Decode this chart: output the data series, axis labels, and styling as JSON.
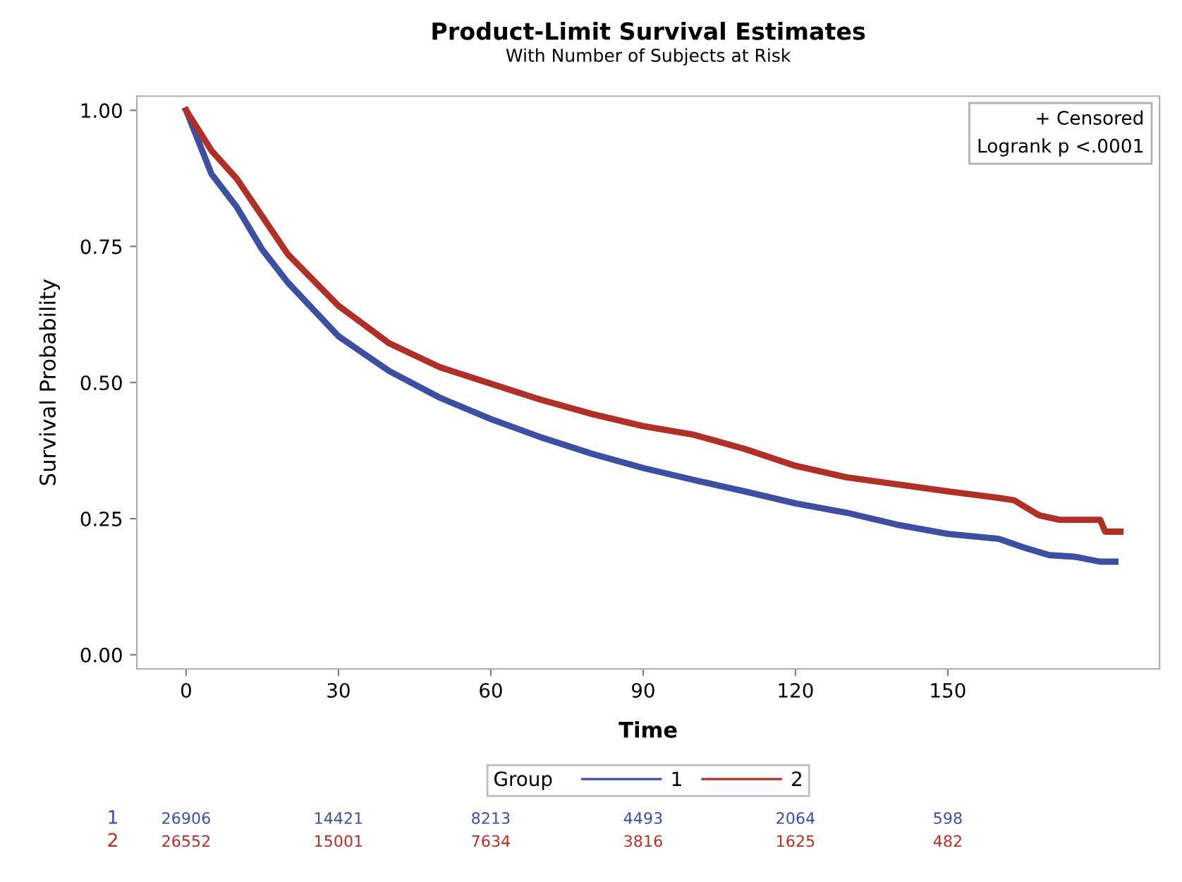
{
  "chart_data": {
    "type": "line",
    "title": "Product-Limit Survival Estimates",
    "subtitle": "With Number of Subjects at Risk",
    "xlabel": "Time",
    "ylabel": "Survival Probability",
    "legend_title": "Group",
    "legend": "bottom",
    "x": [
      0,
      5,
      10,
      15,
      20,
      30,
      40,
      50,
      60,
      70,
      80,
      90,
      100,
      110,
      120,
      130,
      140,
      150,
      160,
      165,
      170,
      175,
      180,
      183
    ],
    "series": [
      {
        "name": "1",
        "color": "#3c4fa0",
        "values": [
          1.0,
          0.883,
          0.822,
          0.744,
          0.684,
          0.585,
          0.521,
          0.472,
          0.433,
          0.399,
          0.369,
          0.343,
          0.321,
          0.3,
          0.278,
          0.261,
          0.239,
          0.222,
          0.213,
          0.197,
          0.183,
          0.18,
          0.171,
          0.171
        ]
      },
      {
        "name": "2",
        "color": "#b03028",
        "x": [
          0,
          5,
          10,
          15,
          20,
          30,
          40,
          50,
          60,
          70,
          80,
          90,
          100,
          110,
          120,
          130,
          140,
          150,
          160,
          163,
          168,
          172,
          180,
          181,
          184
        ],
        "values": [
          1.0,
          0.926,
          0.874,
          0.805,
          0.736,
          0.641,
          0.572,
          0.528,
          0.498,
          0.468,
          0.442,
          0.42,
          0.404,
          0.378,
          0.347,
          0.326,
          0.313,
          0.3,
          0.288,
          0.284,
          0.256,
          0.248,
          0.248,
          0.226,
          0.226
        ]
      }
    ],
    "xlim": [
      -9.7,
      191.7
    ],
    "ylim": [
      -0.026,
      1.026
    ],
    "xticks": [
      0,
      30,
      60,
      90,
      120,
      150
    ],
    "yticks": [
      {
        "value": 0,
        "label": "0.00"
      },
      {
        "value": 0.25,
        "label": "0.25"
      },
      {
        "value": 0.5,
        "label": "0.50"
      },
      {
        "value": 0.75,
        "label": "0.75"
      },
      {
        "value": 1,
        "label": "1.00"
      }
    ],
    "marker": "none",
    "line_style": "solid",
    "annotations": [
      "+ Censored",
      "Logrank p <.0001",
      "1",
      "26906",
      "14421",
      "8213",
      "4493",
      "2064",
      "598",
      "2",
      "26552",
      "15001",
      "7634",
      "3816",
      "1625",
      "482"
    ]
  }
}
